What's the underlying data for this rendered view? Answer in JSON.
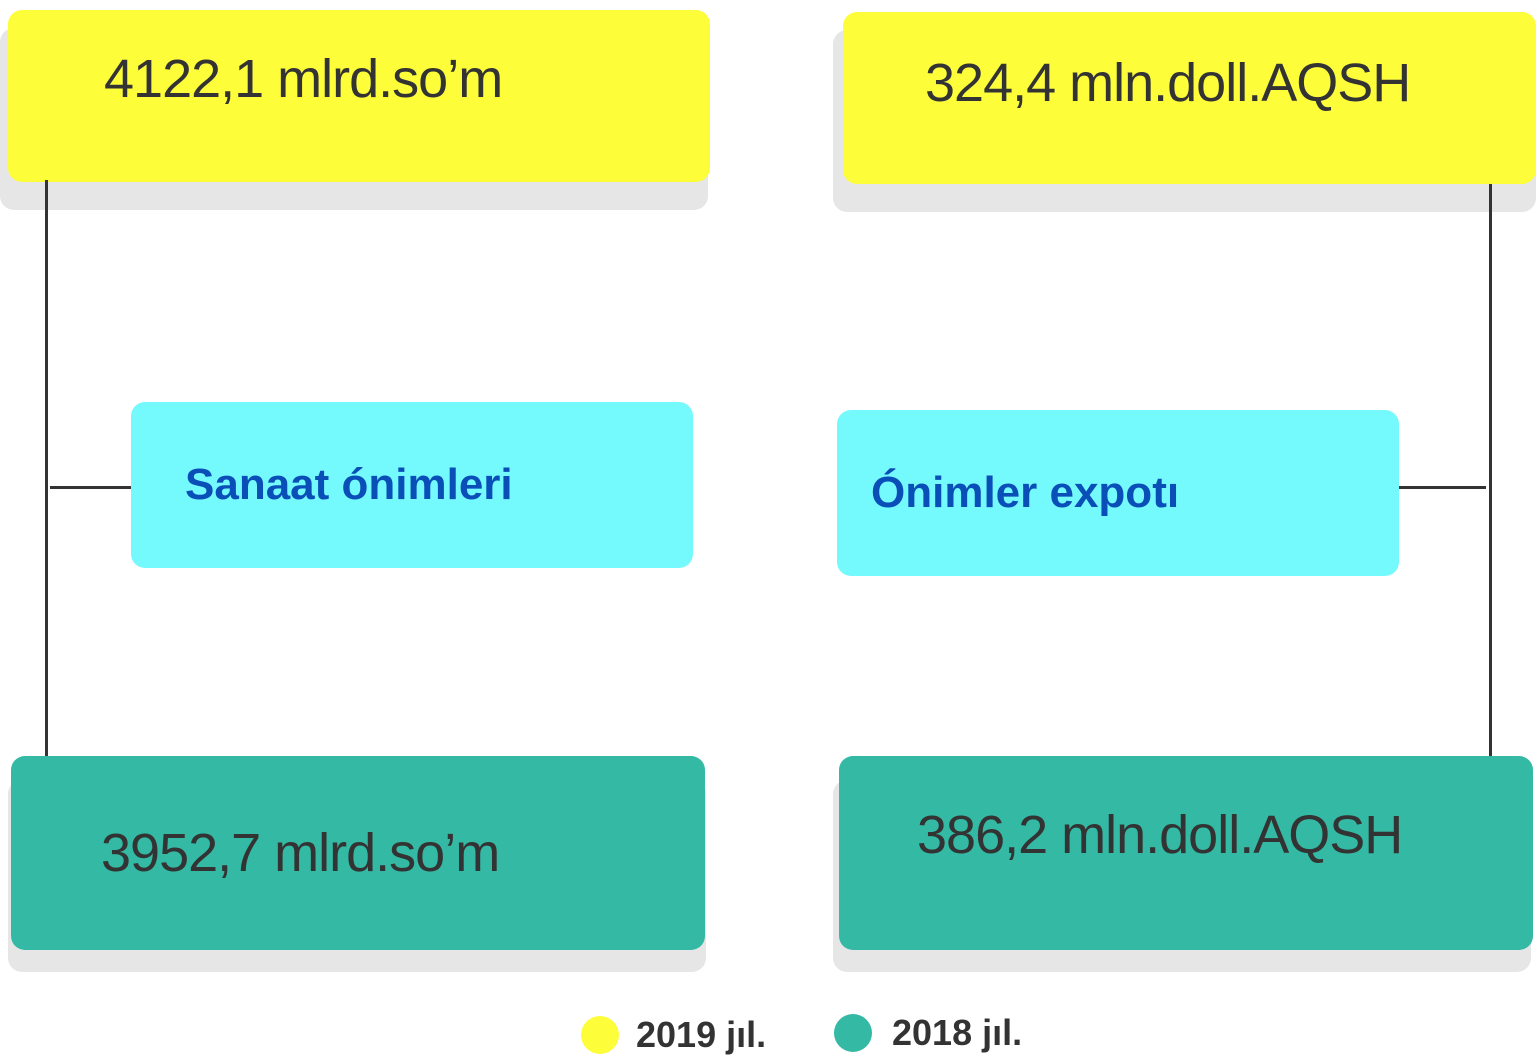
{
  "panels": [
    {
      "label": "Sanaat ónimleri",
      "value_2019": "4122,1 mlrd.so’m",
      "value_2018": "3952,7 mlrd.so’m"
    },
    {
      "label": "Ónimler expotı",
      "value_2019": "324,4 mln.doll.AQSH",
      "value_2018": "386,2 mln.doll.AQSH"
    }
  ],
  "legend": [
    "2019 jıl.",
    "2018 jıl."
  ]
}
